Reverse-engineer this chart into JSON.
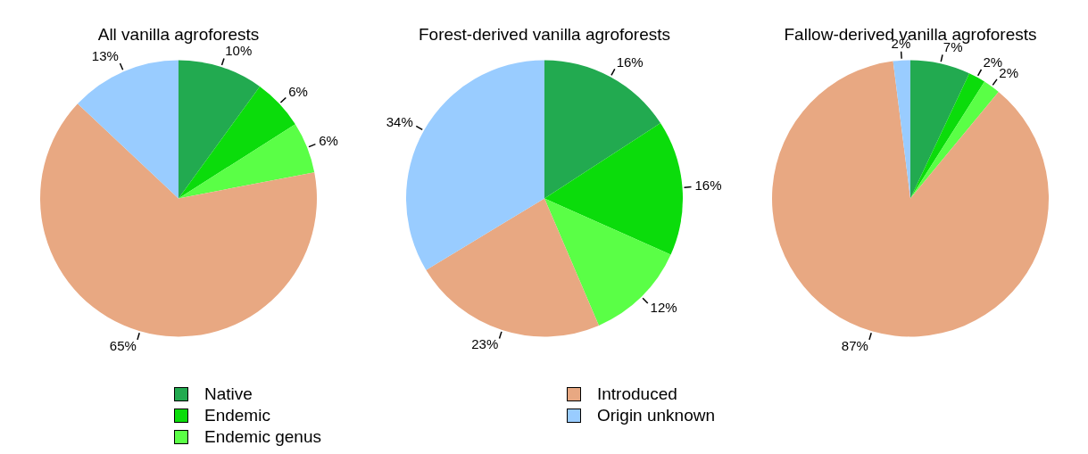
{
  "chart_data": [
    {
      "type": "pie",
      "title": "All vanilla agroforests",
      "categories": [
        "Native",
        "Endemic",
        "Endemic genus",
        "Introduced",
        "Origin unknown"
      ],
      "values": [
        10,
        6,
        6,
        65,
        13
      ],
      "value_labels": [
        "10%",
        "6%",
        "6%",
        "65%",
        "13%"
      ],
      "colors": [
        "#22aa50",
        "#0bdc0b",
        "#5aff46",
        "#e8a882",
        "#99ccff"
      ],
      "legend": "bottom"
    },
    {
      "type": "pie",
      "title": "Forest-derived vanilla agroforests",
      "categories": [
        null,
        null,
        null,
        null,
        null
      ],
      "values": [
        16,
        16,
        12,
        23,
        34
      ],
      "value_labels": [
        "16%",
        "16%",
        "12%",
        "23%",
        "34%"
      ],
      "colors": [
        "#22aa50",
        "#0bdc0b",
        "#5aff46",
        "#e8a882",
        "#99ccff"
      ]
    },
    {
      "type": "pie",
      "title": "Fallow-derived vanilla agroforests",
      "categories": [
        null,
        null,
        null,
        null,
        null
      ],
      "values": [
        7,
        2,
        2,
        87,
        2
      ],
      "value_labels": [
        "7%",
        "2%",
        "2%",
        "87%",
        "2%"
      ],
      "colors": [
        "#22aa50",
        "#0bdc0b",
        "#5aff46",
        "#e8a882",
        "#99ccff"
      ]
    }
  ]
}
